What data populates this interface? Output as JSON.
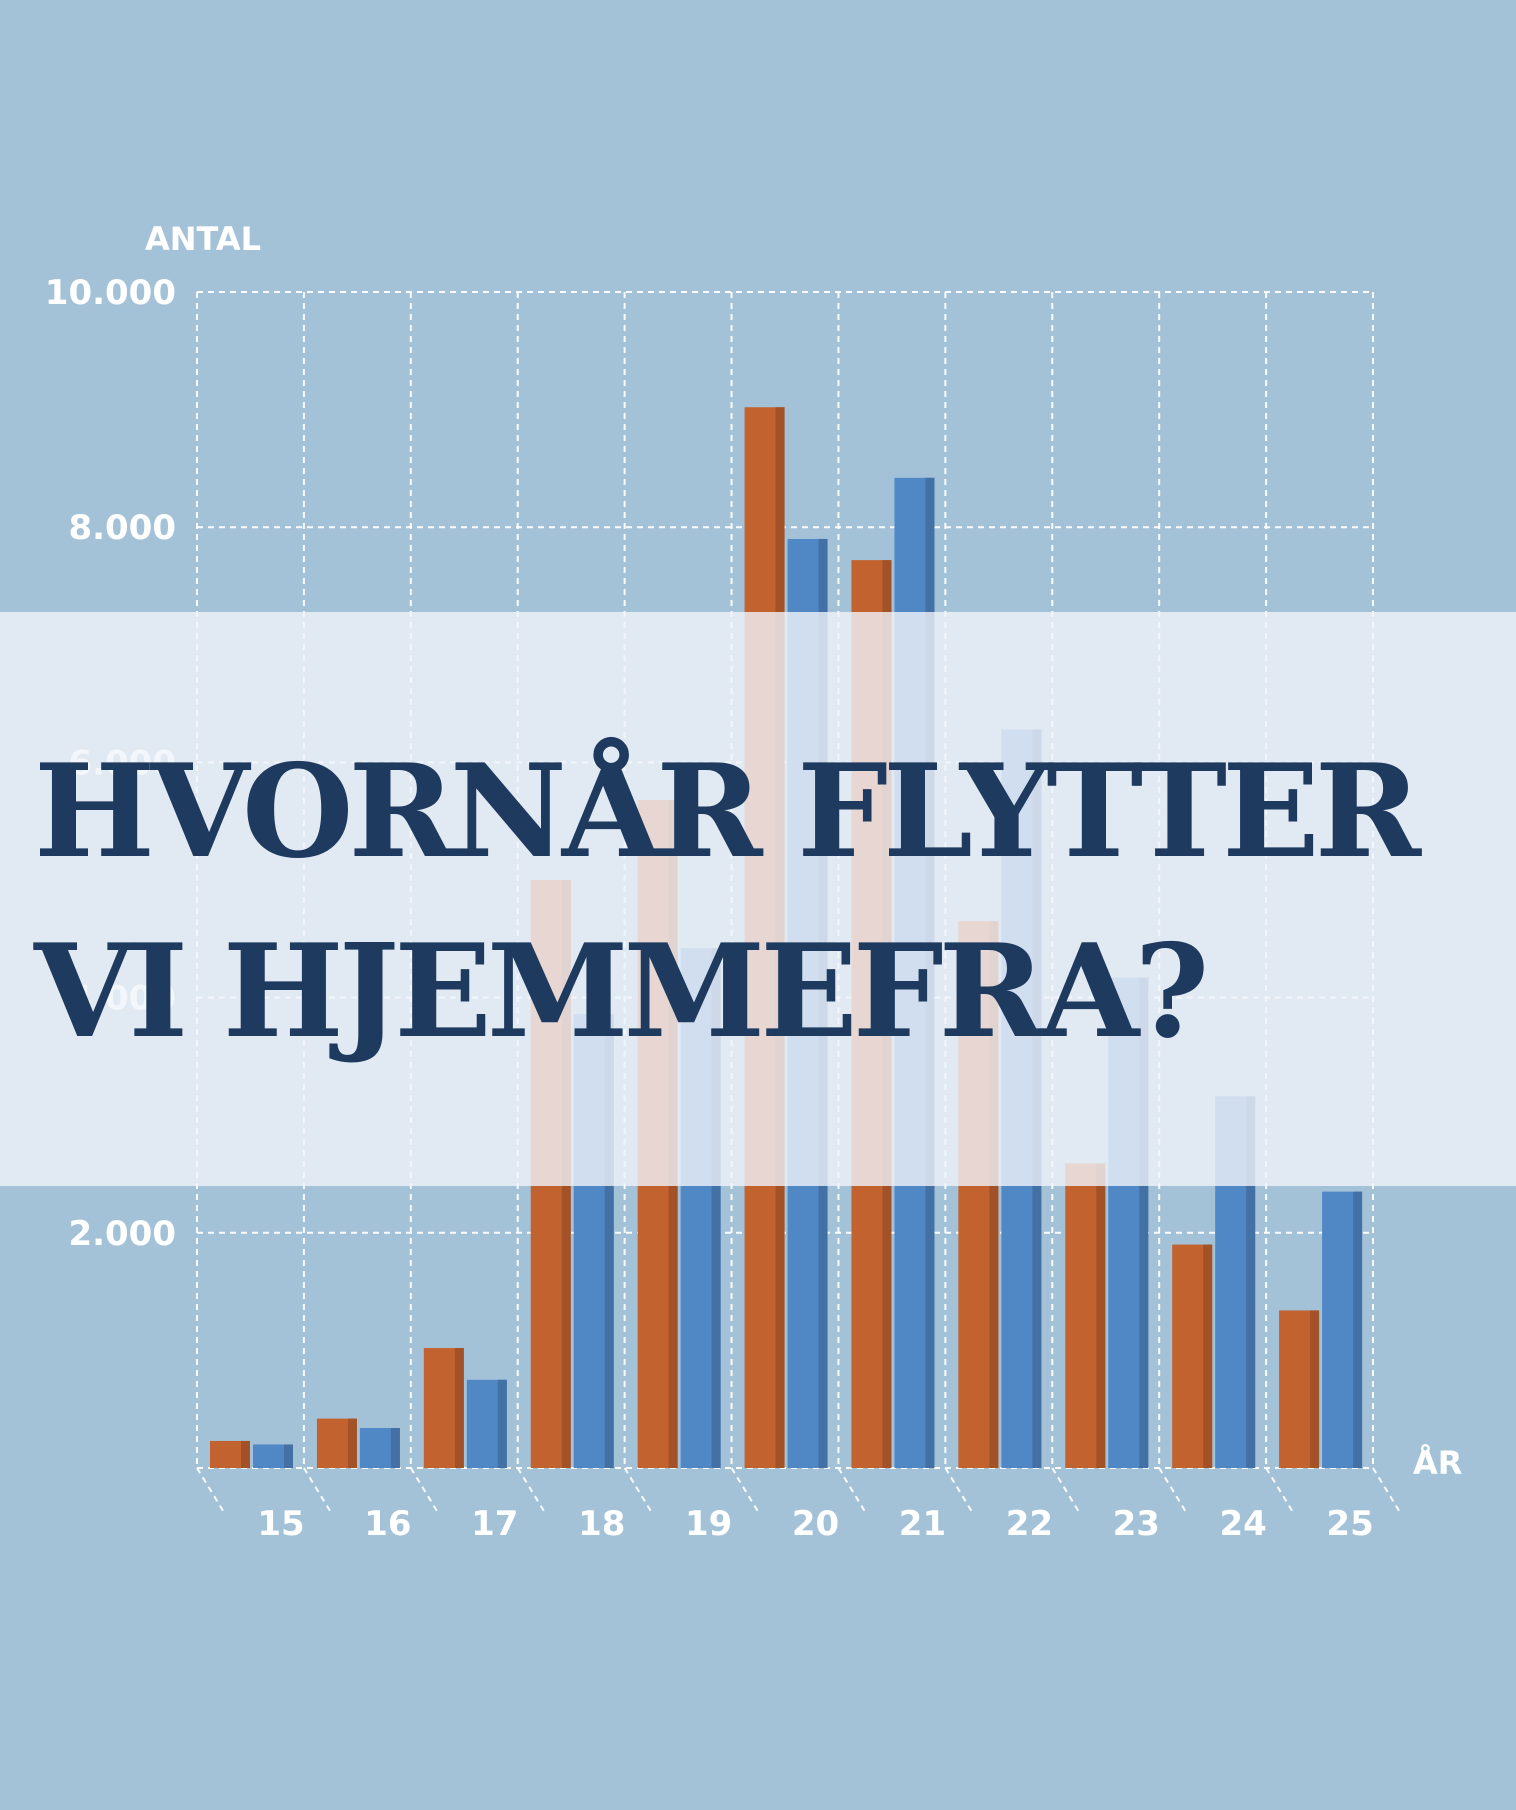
{
  "title_lines": [
    "HVORNÅR FLYTTER",
    "VI HJEMMEFRA?"
  ],
  "colors": {
    "background": "#a3c2d8",
    "band": "#eef2f9",
    "title": "#1f3a5f",
    "series_orange": "#c2622e",
    "series_blue": "#5087c5",
    "grid": "#ffffff"
  },
  "chart_data": {
    "type": "bar",
    "ylabel": "ANTAL",
    "xlabel": "ÅR",
    "categories": [
      "15",
      "16",
      "17",
      "18",
      "19",
      "20",
      "21",
      "22",
      "23",
      "24",
      "25"
    ],
    "y_ticks": [
      {
        "value": 10000,
        "label": "10.000"
      },
      {
        "value": 8000,
        "label": "8.000"
      },
      {
        "value": 6000,
        "label": "6.000"
      },
      {
        "value": 4000,
        "label": "4.000"
      },
      {
        "value": 2000,
        "label": "2.000"
      }
    ],
    "ylim": [
      0,
      10000
    ],
    "grid": true,
    "legend": "none",
    "series": [
      {
        "color": "#c2622e",
        "values": [
          230,
          420,
          1020,
          5000,
          5680,
          9020,
          7720,
          4650,
          2590,
          1900,
          1340
        ]
      },
      {
        "color": "#5087c5",
        "values": [
          200,
          340,
          750,
          3860,
          4420,
          7900,
          8420,
          6280,
          4170,
          3160,
          2350
        ]
      }
    ]
  }
}
